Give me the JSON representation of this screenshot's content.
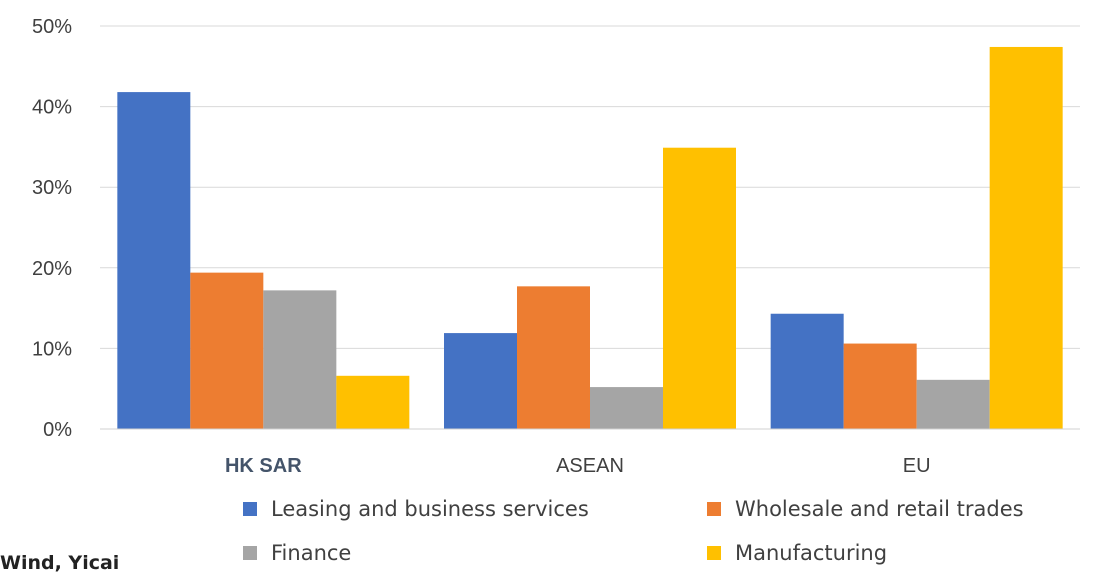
{
  "source": "Wind, Yicai",
  "chart_data": {
    "type": "bar",
    "categories": [
      "HK SAR",
      "ASEAN",
      "EU"
    ],
    "series": [
      {
        "name": "Leasing and business services",
        "values": [
          41.8,
          11.9,
          14.3
        ],
        "color": "#4472c4"
      },
      {
        "name": "Wholesale and retail trades",
        "values": [
          19.4,
          17.7,
          10.6
        ],
        "color": "#ed7d31"
      },
      {
        "name": "Finance",
        "values": [
          17.2,
          5.2,
          6.1
        ],
        "color": "#a5a5a5"
      },
      {
        "name": "Manufacturing",
        "values": [
          6.6,
          34.9,
          47.4
        ],
        "color": "#ffc000"
      }
    ],
    "yticks": [
      "0%",
      "10%",
      "20%",
      "30%",
      "40%",
      "50%"
    ],
    "ylim": [
      0,
      50
    ],
    "grid": true,
    "legend_position": "bottom"
  }
}
